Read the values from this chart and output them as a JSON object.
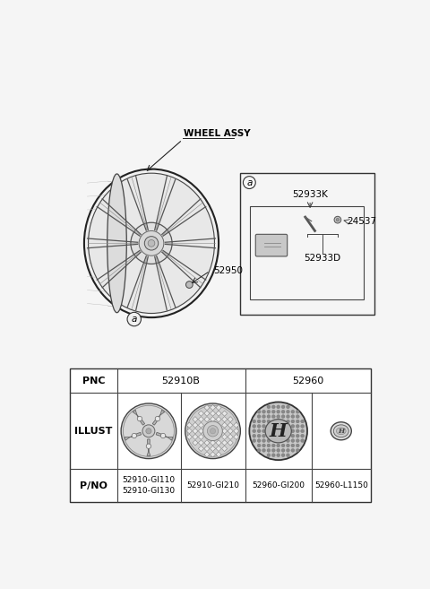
{
  "bg_color": "#f5f5f5",
  "border_color": "#333333",
  "wheel_label": "WHEEL ASSY",
  "part_52950": "52950",
  "part_a_label": "a",
  "box_a_label": "a",
  "part_52933K": "52933K",
  "part_52933D": "52933D",
  "part_24537": "24537",
  "table_row_pnc": "PNC",
  "table_row_illust": "ILLUST",
  "table_row_pno": "P/NO",
  "pnc_merged_1": "52910B",
  "pnc_merged_2": "52960",
  "table_pno_values": [
    "52910-GI110\n52910-GI130",
    "52910-GI210",
    "52960-GI200",
    "52960-L1150"
  ],
  "text_color": "#000000"
}
